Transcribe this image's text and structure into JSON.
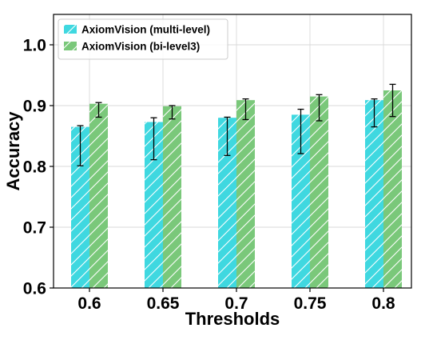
{
  "chart_data": {
    "type": "bar",
    "title": "",
    "xlabel": "Thresholds",
    "ylabel": "Accuracy",
    "categories": [
      "0.6",
      "0.65",
      "0.7",
      "0.75",
      "0.8"
    ],
    "ylim": [
      0.6,
      1.05
    ],
    "yticks": [
      "0.6",
      "0.7",
      "0.8",
      "0.9",
      "1.0"
    ],
    "grid": true,
    "legend_position": "top-left",
    "series": [
      {
        "name": "AxiomVision (multi-level)",
        "color": "#3fd8e0",
        "values": [
          0.865,
          0.873,
          0.88,
          0.885,
          0.909
        ],
        "error_low": [
          0.801,
          0.811,
          0.818,
          0.821,
          0.865
        ],
        "error_high": [
          0.867,
          0.88,
          0.881,
          0.894,
          0.911
        ]
      },
      {
        "name": "AxiomVision (bi-level3)",
        "color": "#7ac87a",
        "values": [
          0.903,
          0.899,
          0.909,
          0.915,
          0.925
        ],
        "error_low": [
          0.881,
          0.878,
          0.877,
          0.875,
          0.882
        ],
        "error_high": [
          0.905,
          0.9,
          0.911,
          0.918,
          0.935
        ]
      }
    ]
  }
}
